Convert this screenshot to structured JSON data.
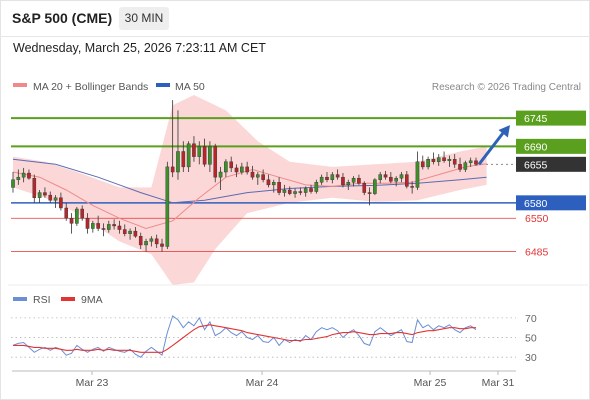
{
  "header": {
    "title": "S&P 500 (CME)",
    "timeframe": "30 MIN"
  },
  "datetime": "Wednesday, March 25, 2026 7:23:11 AM CET",
  "legend": {
    "ma20_bb": "MA 20 + Bollinger Bands",
    "ma50": "MA 50",
    "credit": "Research © 2026 Trading Central"
  },
  "rsi_legend": {
    "rsi": "RSI",
    "ma9": "9MA"
  },
  "colors": {
    "green": "#5aa01e",
    "blue": "#2d5fbf",
    "red": "#e33434",
    "current": "#333333",
    "bollinger": "#f9c9c9",
    "ma20": "#f08a8a",
    "ma50": "#5b6bb0",
    "rsi": "#6b8ed6",
    "rsi_ma": "#e33434",
    "arrow": "#2e62b8"
  },
  "chart_data": [
    {
      "type": "candlestick",
      "price_axis": {
        "min": 6420,
        "max": 6790
      },
      "x_labels": [
        "Mar 23",
        "Mar 24",
        "Mar 25",
        "Mar 31"
      ],
      "levels": [
        {
          "value": 6745,
          "label": "6745",
          "kind": "resistance"
        },
        {
          "value": 6690,
          "label": "6690",
          "kind": "resistance"
        },
        {
          "value": 6655,
          "label": "6655",
          "kind": "current"
        },
        {
          "value": 6580,
          "label": "6580",
          "kind": "pivot"
        },
        {
          "value": 6550,
          "label": "6550",
          "kind": "support"
        },
        {
          "value": 6485,
          "label": "6485",
          "kind": "support"
        }
      ],
      "candles": [
        [
          6610,
          6640,
          6600,
          6625
        ],
        [
          6625,
          6645,
          6615,
          6630
        ],
        [
          6630,
          6648,
          6620,
          6638
        ],
        [
          6638,
          6645,
          6625,
          6628
        ],
        [
          6628,
          6635,
          6580,
          6590
        ],
        [
          6590,
          6605,
          6580,
          6600
        ],
        [
          6600,
          6610,
          6590,
          6595
        ],
        [
          6595,
          6602,
          6580,
          6585
        ],
        [
          6585,
          6595,
          6570,
          6590
        ],
        [
          6590,
          6600,
          6565,
          6570
        ],
        [
          6570,
          6580,
          6545,
          6550
        ],
        [
          6550,
          6560,
          6520,
          6540
        ],
        [
          6540,
          6572,
          6535,
          6568
        ],
        [
          6568,
          6575,
          6545,
          6550
        ],
        [
          6550,
          6560,
          6520,
          6530
        ],
        [
          6530,
          6545,
          6522,
          6540
        ],
        [
          6540,
          6555,
          6525,
          6530
        ],
        [
          6530,
          6540,
          6515,
          6528
        ],
        [
          6528,
          6545,
          6522,
          6538
        ],
        [
          6538,
          6548,
          6528,
          6535
        ],
        [
          6535,
          6545,
          6520,
          6528
        ],
        [
          6528,
          6538,
          6515,
          6520
        ],
        [
          6520,
          6530,
          6508,
          6525
        ],
        [
          6525,
          6533,
          6512,
          6515
        ],
        [
          6515,
          6522,
          6490,
          6498
        ],
        [
          6498,
          6510,
          6485,
          6505
        ],
        [
          6505,
          6515,
          6495,
          6510
        ],
        [
          6510,
          6518,
          6492,
          6500
        ],
        [
          6500,
          6510,
          6485,
          6495
        ],
        [
          6495,
          6660,
          6490,
          6650
        ],
        [
          6650,
          6780,
          6630,
          6640
        ],
        [
          6640,
          6760,
          6625,
          6680
        ],
        [
          6680,
          6700,
          6640,
          6650
        ],
        [
          6650,
          6700,
          6640,
          6695
        ],
        [
          6695,
          6710,
          6660,
          6670
        ],
        [
          6670,
          6700,
          6655,
          6690
        ],
        [
          6690,
          6705,
          6650,
          6655
        ],
        [
          6655,
          6700,
          6640,
          6690
        ],
        [
          6690,
          6695,
          6620,
          6630
        ],
        [
          6630,
          6650,
          6605,
          6640
        ],
        [
          6640,
          6665,
          6630,
          6660
        ],
        [
          6660,
          6670,
          6640,
          6648
        ],
        [
          6648,
          6655,
          6630,
          6640
        ],
        [
          6640,
          6658,
          6635,
          6650
        ],
        [
          6650,
          6660,
          6635,
          6640
        ],
        [
          6640,
          6652,
          6625,
          6630
        ],
        [
          6630,
          6640,
          6615,
          6635
        ],
        [
          6635,
          6645,
          6620,
          6625
        ],
        [
          6625,
          6635,
          6610,
          6615
        ],
        [
          6615,
          6625,
          6600,
          6620
        ],
        [
          6620,
          6630,
          6595,
          6600
        ],
        [
          6600,
          6615,
          6592,
          6605
        ],
        [
          6605,
          6612,
          6595,
          6598
        ],
        [
          6598,
          6608,
          6590,
          6602
        ],
        [
          6602,
          6610,
          6595,
          6600
        ],
        [
          6600,
          6612,
          6592,
          6608
        ],
        [
          6608,
          6615,
          6598,
          6602
        ],
        [
          6602,
          6625,
          6598,
          6620
        ],
        [
          6620,
          6635,
          6615,
          6630
        ],
        [
          6630,
          6640,
          6620,
          6625
        ],
        [
          6625,
          6640,
          6618,
          6635
        ],
        [
          6635,
          6645,
          6625,
          6630
        ],
        [
          6630,
          6638,
          6610,
          6615
        ],
        [
          6615,
          6625,
          6605,
          6620
        ],
        [
          6620,
          6632,
          6612,
          6628
        ],
        [
          6628,
          6635,
          6615,
          6618
        ],
        [
          6618,
          6622,
          6595,
          6600
        ],
        [
          6600,
          6610,
          6575,
          6598
        ],
        [
          6598,
          6628,
          6595,
          6625
        ],
        [
          6625,
          6640,
          6618,
          6635
        ],
        [
          6635,
          6642,
          6625,
          6630
        ],
        [
          6630,
          6640,
          6618,
          6622
        ],
        [
          6622,
          6632,
          6612,
          6628
        ],
        [
          6628,
          6640,
          6620,
          6635
        ],
        [
          6635,
          6642,
          6608,
          6612
        ],
        [
          6612,
          6622,
          6598,
          6610
        ],
        [
          6610,
          6680,
          6605,
          6660
        ],
        [
          6660,
          6672,
          6645,
          6650
        ],
        [
          6650,
          6670,
          6645,
          6665
        ],
        [
          6665,
          6678,
          6655,
          6660
        ],
        [
          6660,
          6675,
          6652,
          6668
        ],
        [
          6668,
          6680,
          6658,
          6662
        ],
        [
          6662,
          6672,
          6650,
          6665
        ],
        [
          6665,
          6675,
          6648,
          6655
        ],
        [
          6655,
          6668,
          6640,
          6645
        ],
        [
          6645,
          6662,
          6640,
          6658
        ],
        [
          6658,
          6668,
          6650,
          6662
        ],
        [
          6662,
          6668,
          6652,
          6655
        ]
      ],
      "ma20": [
        [
          0,
          6640
        ],
        [
          5,
          6630
        ],
        [
          10,
          6605
        ],
        [
          15,
          6575
        ],
        [
          20,
          6550
        ],
        [
          25,
          6530
        ],
        [
          30,
          6545
        ],
        [
          35,
          6590
        ],
        [
          40,
          6630
        ],
        [
          45,
          6645
        ],
        [
          50,
          6630
        ],
        [
          55,
          6615
        ],
        [
          60,
          6612
        ],
        [
          65,
          6618
        ],
        [
          70,
          6618
        ],
        [
          75,
          6620
        ],
        [
          80,
          6635
        ],
        [
          85,
          6650
        ],
        [
          89,
          6656
        ]
      ],
      "ma50": [
        [
          0,
          6665
        ],
        [
          8,
          6655
        ],
        [
          16,
          6630
        ],
        [
          24,
          6600
        ],
        [
          30,
          6580
        ],
        [
          36,
          6585
        ],
        [
          44,
          6600
        ],
        [
          52,
          6608
        ],
        [
          60,
          6612
        ],
        [
          68,
          6614
        ],
        [
          76,
          6618
        ],
        [
          84,
          6625
        ],
        [
          89,
          6630
        ]
      ],
      "bollinger_upper": [
        [
          0,
          6670
        ],
        [
          6,
          6660
        ],
        [
          12,
          6640
        ],
        [
          20,
          6610
        ],
        [
          26,
          6610
        ],
        [
          30,
          6770
        ],
        [
          34,
          6790
        ],
        [
          40,
          6760
        ],
        [
          46,
          6700
        ],
        [
          52,
          6660
        ],
        [
          60,
          6650
        ],
        [
          68,
          6655
        ],
        [
          76,
          6660
        ],
        [
          84,
          6680
        ],
        [
          89,
          6690
        ]
      ],
      "bollinger_lower": [
        [
          0,
          6610
        ],
        [
          6,
          6590
        ],
        [
          12,
          6560
        ],
        [
          20,
          6505
        ],
        [
          26,
          6480
        ],
        [
          30,
          6420
        ],
        [
          34,
          6425
        ],
        [
          38,
          6490
        ],
        [
          44,
          6560
        ],
        [
          52,
          6580
        ],
        [
          60,
          6590
        ],
        [
          68,
          6582
        ],
        [
          76,
          6585
        ],
        [
          84,
          6605
        ],
        [
          89,
          6615
        ]
      ],
      "projection": {
        "from": 6655,
        "to": 6745
      }
    },
    {
      "type": "line",
      "name": "RSI",
      "y_axis": {
        "min": 20,
        "max": 75,
        "ticks": [
          70,
          50,
          30
        ]
      },
      "series": [
        {
          "name": "RSI",
          "values": [
            42,
            44,
            45,
            40,
            35,
            38,
            40,
            37,
            40,
            38,
            32,
            34,
            42,
            38,
            35,
            38,
            40,
            36,
            40,
            38,
            36,
            35,
            38,
            33,
            30,
            36,
            40,
            36,
            32,
            55,
            72,
            68,
            60,
            66,
            62,
            70,
            58,
            66,
            52,
            55,
            60,
            55,
            52,
            56,
            50,
            48,
            52,
            46,
            45,
            50,
            42,
            48,
            45,
            48,
            46,
            52,
            48,
            56,
            60,
            58,
            60,
            57,
            50,
            55,
            58,
            52,
            44,
            42,
            56,
            60,
            56,
            52,
            55,
            58,
            46,
            45,
            68,
            60,
            63,
            58,
            62,
            60,
            63,
            58,
            55,
            60,
            62,
            58
          ]
        },
        {
          "name": "9MA",
          "values": [
            42,
            42,
            42,
            41,
            40,
            40,
            39,
            39,
            39,
            38,
            37,
            37,
            38,
            37,
            37,
            37,
            38,
            37,
            38,
            37,
            37,
            37,
            37,
            36,
            35,
            35,
            35,
            35,
            35,
            38,
            42,
            46,
            50,
            54,
            58,
            61,
            62,
            63,
            62,
            61,
            60,
            59,
            58,
            57,
            55,
            54,
            53,
            52,
            51,
            50,
            49,
            48,
            47,
            47,
            47,
            48,
            48,
            49,
            50,
            51,
            53,
            54,
            55,
            55,
            56,
            55,
            54,
            53,
            53,
            54,
            54,
            54,
            55,
            55,
            54,
            53,
            55,
            56,
            57,
            57,
            58,
            59,
            60,
            60,
            59,
            59,
            60,
            60
          ]
        }
      ]
    }
  ]
}
